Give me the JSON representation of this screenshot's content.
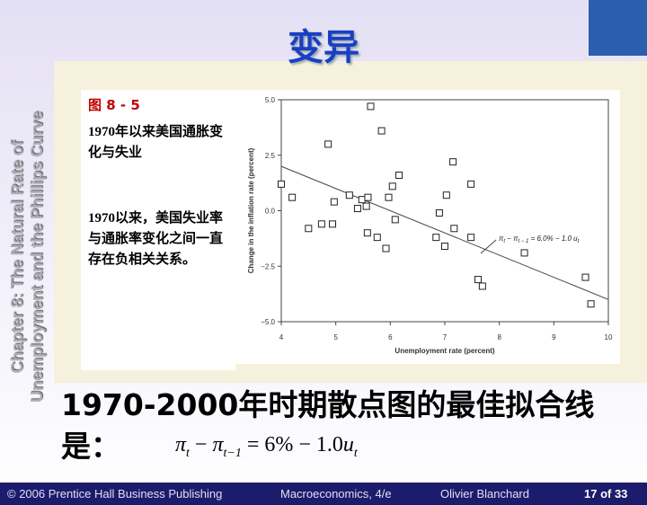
{
  "slide_title": "变异",
  "side_title": [
    "Chapter 8: The Natural Rate of",
    "Unemployment and the Phillips Curve"
  ],
  "figure": {
    "label": "图 8 - 5",
    "caption": "1970年以来美国通胀变化与失业",
    "note": "1970以来，美国失业率与通胀率变化之间一直存在负相关关系。"
  },
  "chart_data": {
    "type": "scatter",
    "x_label": "Unemployment rate (percent)",
    "y_label": "Change in the inflation rate (percent)",
    "x": [
      4.0,
      4.2,
      4.5,
      4.74,
      4.86,
      4.94,
      4.97,
      5.25,
      5.4,
      5.48,
      5.56,
      5.59,
      5.58,
      5.64,
      5.76,
      5.84,
      5.92,
      5.97,
      6.04,
      6.09,
      6.16,
      6.9,
      6.84,
      7.0,
      7.03,
      7.15,
      7.17,
      7.48,
      7.48,
      7.61,
      7.69,
      8.46,
      9.58,
      9.68
    ],
    "values": [
      1.2,
      0.6,
      -0.8,
      -0.6,
      3.0,
      -0.6,
      0.4,
      0.7,
      0.1,
      0.5,
      0.2,
      0.6,
      -1.0,
      4.7,
      -1.2,
      3.6,
      -1.7,
      0.6,
      1.1,
      -0.4,
      1.6,
      -0.1,
      -1.2,
      -1.6,
      0.7,
      2.2,
      -0.8,
      1.2,
      -1.2,
      -3.1,
      -3.4,
      -1.9,
      -3.0,
      -4.2
    ],
    "fit": {
      "x": [
        4,
        10
      ],
      "values": [
        2.0,
        -4.0
      ]
    },
    "annotation": [
      "π",
      "t",
      " − π",
      "t − 1",
      " = 6.0% − 1.0 u",
      "t"
    ],
    "xlim": [
      4,
      10
    ],
    "ylim": [
      -5,
      5
    ],
    "xticks": [
      4,
      5,
      6,
      7,
      8,
      9,
      10
    ],
    "yticks": [
      {
        "value": 5,
        "label": "5.0"
      },
      {
        "value": 2.5,
        "label": "2.5"
      },
      {
        "value": 0,
        "label": "0.0"
      },
      {
        "value": -2.5,
        "label": "−2.5"
      },
      {
        "value": -5,
        "label": "−5.0"
      }
    ]
  },
  "conclusion": {
    "text": "1970-2000年时期散点图的最佳拟合线是：",
    "formula": [
      "π",
      "t",
      " − ",
      "π",
      "t−1",
      " = 6% − 1.0",
      "u",
      "t"
    ]
  },
  "footer": {
    "publisher": "© 2006 Prentice Hall Business Publishing",
    "book": "Macroeconomics, 4/e",
    "author": "Olivier Blanchard",
    "page": "17 of 33"
  }
}
